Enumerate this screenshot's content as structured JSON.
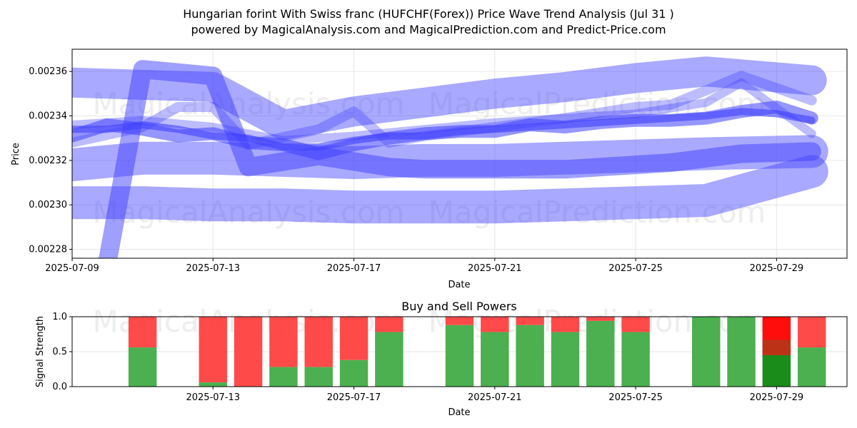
{
  "title_line1": "Hungarian forint With Swiss franc (HUFCHF(Forex)) Price Wave Trend Analysis (Jul 31 )",
  "title_line2": "powered by MagicalAnalysis.com and MagicalPrediction.com and Predict-Price.com",
  "watermarks": [
    "MagicalAnalysis.com",
    "MagicalPrediction.com"
  ],
  "colors": {
    "wave": "#4040ff",
    "buy": "#4caf50",
    "sell": "#ff4040",
    "strong_sell": "#ff0000",
    "strong_buy": "#1a8c1a"
  },
  "chart_data": [
    {
      "type": "line",
      "xlabel": "Date",
      "ylabel": "Price",
      "x_start": "2025-07-09",
      "x_end": "2025-07-31",
      "xlim": [
        "2025-07-09",
        "2025-07-31"
      ],
      "ylim": [
        0.002276,
        0.00237
      ],
      "x_tick_labels": [
        "2025-07-09",
        "2025-07-13",
        "2025-07-17",
        "2025-07-21",
        "2025-07-25",
        "2025-07-29"
      ],
      "y_ticks": [
        0.00228,
        0.0023,
        0.00232,
        0.00234,
        0.00236
      ],
      "y_tick_labels": [
        "0.00228",
        "0.00230",
        "0.00232",
        "0.00234",
        "0.00236"
      ],
      "grid": true,
      "series": [
        {
          "x": [
            "2025-07-09",
            "2025-07-11",
            "2025-07-13",
            "2025-07-15",
            "2025-07-17",
            "2025-07-19",
            "2025-07-21",
            "2025-07-23",
            "2025-07-25",
            "2025-07-27",
            "2025-07-30"
          ],
          "y": [
            0.002355,
            0.002354,
            0.002353,
            0.002336,
            0.002342,
            0.002346,
            0.00235,
            0.002353,
            0.002357,
            0.00236,
            0.002356
          ],
          "width": 42,
          "opacity": 0.45
        },
        {
          "x": [
            "2025-07-09",
            "2025-07-11",
            "2025-07-13",
            "2025-07-15",
            "2025-07-17",
            "2025-07-19",
            "2025-07-21",
            "2025-07-23",
            "2025-07-25",
            "2025-07-27",
            "2025-07-30"
          ],
          "y": [
            0.002318,
            0.002321,
            0.002321,
            0.00232,
            0.002319,
            0.00232,
            0.00232,
            0.002321,
            0.002322,
            0.002323,
            0.002324
          ],
          "width": 46,
          "opacity": 0.45
        },
        {
          "x": [
            "2025-07-09",
            "2025-07-11",
            "2025-07-13",
            "2025-07-15",
            "2025-07-17",
            "2025-07-19",
            "2025-07-21",
            "2025-07-23",
            "2025-07-25",
            "2025-07-27",
            "2025-07-30"
          ],
          "y": [
            0.002301,
            0.002301,
            0.0023,
            0.0023,
            0.002299,
            0.002299,
            0.002299,
            0.0023,
            0.002301,
            0.002302,
            0.002315
          ],
          "width": 46,
          "opacity": 0.45
        },
        {
          "x": [
            "2025-07-09",
            "2025-07-10",
            "2025-07-11",
            "2025-07-13",
            "2025-07-14",
            "2025-07-16",
            "2025-07-18",
            "2025-07-19",
            "2025-07-21",
            "2025-07-23",
            "2025-07-24",
            "2025-07-26",
            "2025-07-28",
            "2025-07-30"
          ],
          "y": [
            0.002264,
            0.002274,
            0.002361,
            0.002358,
            0.002317,
            0.002322,
            0.002317,
            0.002316,
            0.002316,
            0.002316,
            0.002317,
            0.002319,
            0.002323,
            0.002324
          ],
          "width": 26,
          "opacity": 0.5
        },
        {
          "x": [
            "2025-07-09",
            "2025-07-11",
            "2025-07-12",
            "2025-07-13",
            "2025-07-14",
            "2025-07-16",
            "2025-07-17",
            "2025-07-18",
            "2025-07-19",
            "2025-07-21",
            "2025-07-23",
            "2025-07-25",
            "2025-07-26",
            "2025-07-28",
            "2025-07-30"
          ],
          "y": [
            0.002328,
            0.002335,
            0.002344,
            0.002344,
            0.002327,
            0.002334,
            0.002342,
            0.002328,
            0.002331,
            0.002335,
            0.002339,
            0.002344,
            0.002345,
            0.002358,
            0.002347
          ],
          "width": 14,
          "opacity": 0.35
        },
        {
          "x": [
            "2025-07-09",
            "2025-07-10",
            "2025-07-11",
            "2025-07-12",
            "2025-07-13",
            "2025-07-14",
            "2025-07-15",
            "2025-07-16",
            "2025-07-17",
            "2025-07-18",
            "2025-07-19",
            "2025-07-20",
            "2025-07-21",
            "2025-07-22",
            "2025-07-23",
            "2025-07-24",
            "2025-07-25",
            "2025-07-26",
            "2025-07-27",
            "2025-07-28",
            "2025-07-29",
            "2025-07-30"
          ],
          "y": [
            0.002331,
            0.002336,
            0.002334,
            0.002331,
            0.002332,
            0.002328,
            0.002327,
            0.002323,
            0.002327,
            0.00233,
            0.002332,
            0.002333,
            0.002333,
            0.002336,
            0.002335,
            0.002337,
            0.002338,
            0.002338,
            0.002339,
            0.002342,
            0.002344,
            0.002339
          ],
          "width": 18,
          "opacity": 0.55
        },
        {
          "x": [
            "2025-07-09",
            "2025-07-10",
            "2025-07-11",
            "2025-07-12",
            "2025-07-13",
            "2025-07-14",
            "2025-07-15",
            "2025-07-16",
            "2025-07-17",
            "2025-07-18",
            "2025-07-19",
            "2025-07-20",
            "2025-07-21",
            "2025-07-22",
            "2025-07-23",
            "2025-07-24",
            "2025-07-25",
            "2025-07-26",
            "2025-07-27",
            "2025-07-28",
            "2025-07-29",
            "2025-07-30"
          ],
          "y": [
            0.002334,
            0.002334,
            0.002336,
            0.002334,
            0.002331,
            0.00233,
            0.002326,
            0.002326,
            0.002329,
            0.002331,
            0.002331,
            0.002333,
            0.002334,
            0.002335,
            0.002336,
            0.002337,
            0.002338,
            0.002339,
            0.00234,
            0.002342,
            0.002341,
            0.002338
          ],
          "width": 10,
          "opacity": 0.6
        },
        {
          "x": [
            "2025-07-09",
            "2025-07-11",
            "2025-07-13",
            "2025-07-15",
            "2025-07-17",
            "2025-07-19",
            "2025-07-21",
            "2025-07-23",
            "2025-07-25",
            "2025-07-27",
            "2025-07-28",
            "2025-07-30"
          ],
          "y": [
            0.002336,
            0.002338,
            0.002335,
            0.002329,
            0.002331,
            0.002334,
            0.002337,
            0.002339,
            0.002341,
            0.002346,
            0.002355,
            0.002332
          ],
          "width": 12,
          "opacity": 0.35
        }
      ]
    },
    {
      "type": "bar",
      "title": "Buy and Sell Powers",
      "xlabel": "Date",
      "ylabel": "Signal Strength",
      "xlim": [
        "2025-07-09",
        "2025-07-31"
      ],
      "ylim": [
        0,
        1
      ],
      "x_tick_labels": [
        "2025-07-13",
        "2025-07-17",
        "2025-07-21",
        "2025-07-25",
        "2025-07-29"
      ],
      "y_tick_labels": [
        "0.0",
        "0.5",
        "1.0"
      ],
      "bars": [
        {
          "date": "2025-07-11",
          "buy": 0.56
        },
        {
          "date": "2025-07-13",
          "buy": 0.06
        },
        {
          "date": "2025-07-14",
          "buy": 0.0
        },
        {
          "date": "2025-07-15",
          "buy": 0.28
        },
        {
          "date": "2025-07-16",
          "buy": 0.28
        },
        {
          "date": "2025-07-17",
          "buy": 0.38
        },
        {
          "date": "2025-07-18",
          "buy": 0.78
        },
        {
          "date": "2025-07-20",
          "buy": 0.88
        },
        {
          "date": "2025-07-21",
          "buy": 0.78
        },
        {
          "date": "2025-07-22",
          "buy": 0.88
        },
        {
          "date": "2025-07-23",
          "buy": 0.78
        },
        {
          "date": "2025-07-24",
          "buy": 0.94
        },
        {
          "date": "2025-07-25",
          "buy": 0.78
        },
        {
          "date": "2025-07-27",
          "buy": 1.0
        },
        {
          "date": "2025-07-28",
          "buy": 1.0
        },
        {
          "date": "2025-07-29",
          "buy": 0.45,
          "strong": true
        },
        {
          "date": "2025-07-30",
          "buy": 0.56
        }
      ]
    }
  ]
}
